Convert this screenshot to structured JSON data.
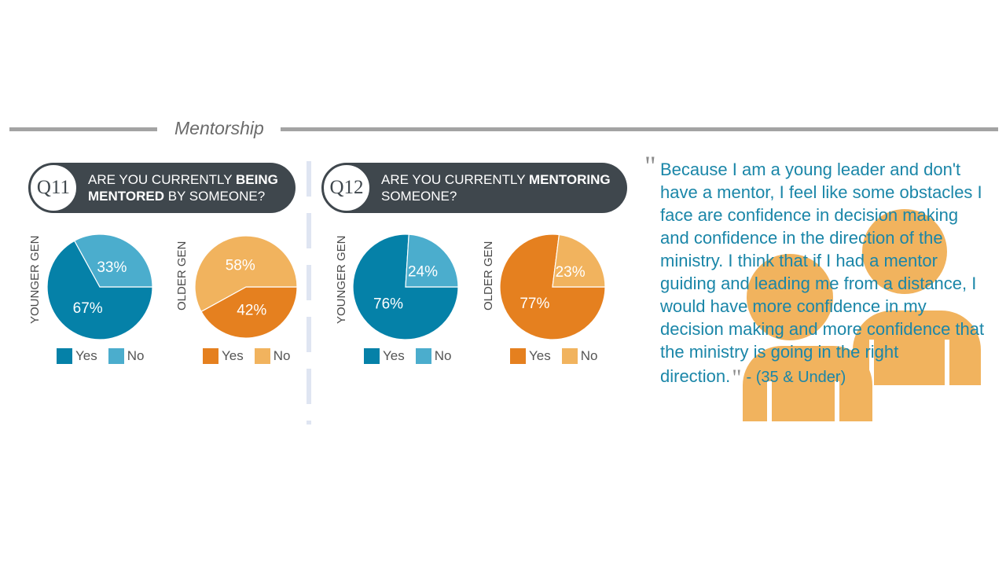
{
  "section_title": "Mentorship",
  "colors": {
    "younger_yes": "#0581a8",
    "younger_no": "#4badcd",
    "older_yes": "#e5801f",
    "older_no": "#f1b35e",
    "header": "#3f474d",
    "quote_text": "#1a86a8",
    "people_icon": "#f1b35e"
  },
  "questions": [
    {
      "badge": "Q11",
      "text_parts": [
        "ARE YOU CURRENTLY ",
        "BEING",
        "MENTORED",
        " BY SOMEONE?"
      ]
    },
    {
      "badge": "Q12",
      "text_parts": [
        "ARE YOU CURRENTLY ",
        "MENTORING",
        "",
        "SOMEONE?"
      ]
    }
  ],
  "legend": {
    "yes": "Yes",
    "no": "No"
  },
  "chart_data": [
    {
      "type": "pie",
      "question": "Q11",
      "label": "YOUNGER GEN",
      "categories": [
        "Yes",
        "No"
      ],
      "values": [
        67,
        33
      ],
      "data_labels": [
        "67%",
        "33%"
      ]
    },
    {
      "type": "pie",
      "question": "Q11",
      "label": "OLDER GEN",
      "categories": [
        "Yes",
        "No"
      ],
      "values": [
        42,
        58
      ],
      "data_labels": [
        "42%",
        "58%"
      ]
    },
    {
      "type": "pie",
      "question": "Q12",
      "label": "YOUNGER GEN",
      "categories": [
        "Yes",
        "No"
      ],
      "values": [
        76,
        24
      ],
      "data_labels": [
        "76%",
        "24%"
      ]
    },
    {
      "type": "pie",
      "question": "Q12",
      "label": "OLDER GEN",
      "categories": [
        "Yes",
        "No"
      ],
      "values": [
        77,
        23
      ],
      "data_labels": [
        "77%",
        "23%"
      ]
    }
  ],
  "quote": {
    "open_mark": "\"",
    "close_mark": "\"",
    "text": "Because I am a young leader and don't have a mentor, I feel like some obstacles I face are confidence in decision making and confidence in the direction of the ministry. I think that if I had a mentor guiding and leading me from a distance, I would have more confidence in my decision making and more confidence that the ministry is going in the right direction.",
    "attribution": "- (35 & Under)",
    "icon": "two-people-icon"
  }
}
